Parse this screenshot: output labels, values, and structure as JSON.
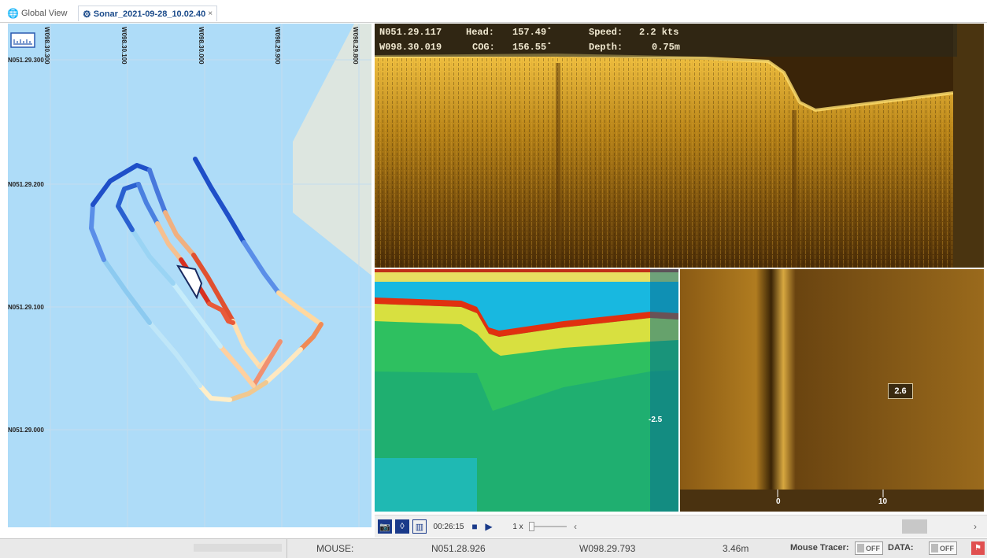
{
  "tabs": [
    {
      "label": "Global View",
      "icon": "globe-icon"
    },
    {
      "label": "Sonar_2021-09-28_10.02.40",
      "icon": "gear-icon",
      "close": "×"
    }
  ],
  "map": {
    "lon_labels": [
      "W098.30.300",
      "W098.30.100",
      "W098.30.000",
      "W098.29.900",
      "W098.29.800"
    ],
    "lat_labels": [
      "N051.29.300",
      "N051.29.200",
      "N051.29.100",
      "N051.29.000"
    ],
    "water_color": "#aedcf8",
    "land_color": "#dde6e0",
    "scale_icon": "ruler-icon",
    "boat_icon": "boat-icon"
  },
  "nmea": {
    "lat": "N051.29.117",
    "lon": "W098.30.019",
    "head_label": "Head:",
    "head_value": "157.49˚",
    "cog_label": "COG:",
    "cog_value": "156.55˚",
    "speed_label": "Speed:",
    "speed_value": "2.2 kts",
    "depth_label": "Depth:",
    "depth_value": "0.75m"
  },
  "down_scan": {
    "depth_marker": "-2.5"
  },
  "side_scan": {
    "range_labels": [
      "0",
      "10"
    ],
    "cursor_value": "2.6"
  },
  "playback": {
    "time": "00:26:15",
    "speed": "1 x",
    "camera_icon": "camera-icon",
    "drop_icon": "drop-icon",
    "ruler_icon": "ruler-icon",
    "stop_icon": "stop-icon",
    "play_icon": "play-icon",
    "prev_icon": "chevron-left-icon",
    "next_icon": "chevron-right-icon"
  },
  "status": {
    "mouse_label": "MOUSE:",
    "mouse_lat": "N051.28.926",
    "mouse_lon": "W098.29.793",
    "mouse_depth": "3.46m",
    "tracer_label": "Mouse Tracer:",
    "tracer_state": "OFF",
    "data_label": "DATA:",
    "data_state": "OFF",
    "flag_icon": "flag-icon"
  }
}
